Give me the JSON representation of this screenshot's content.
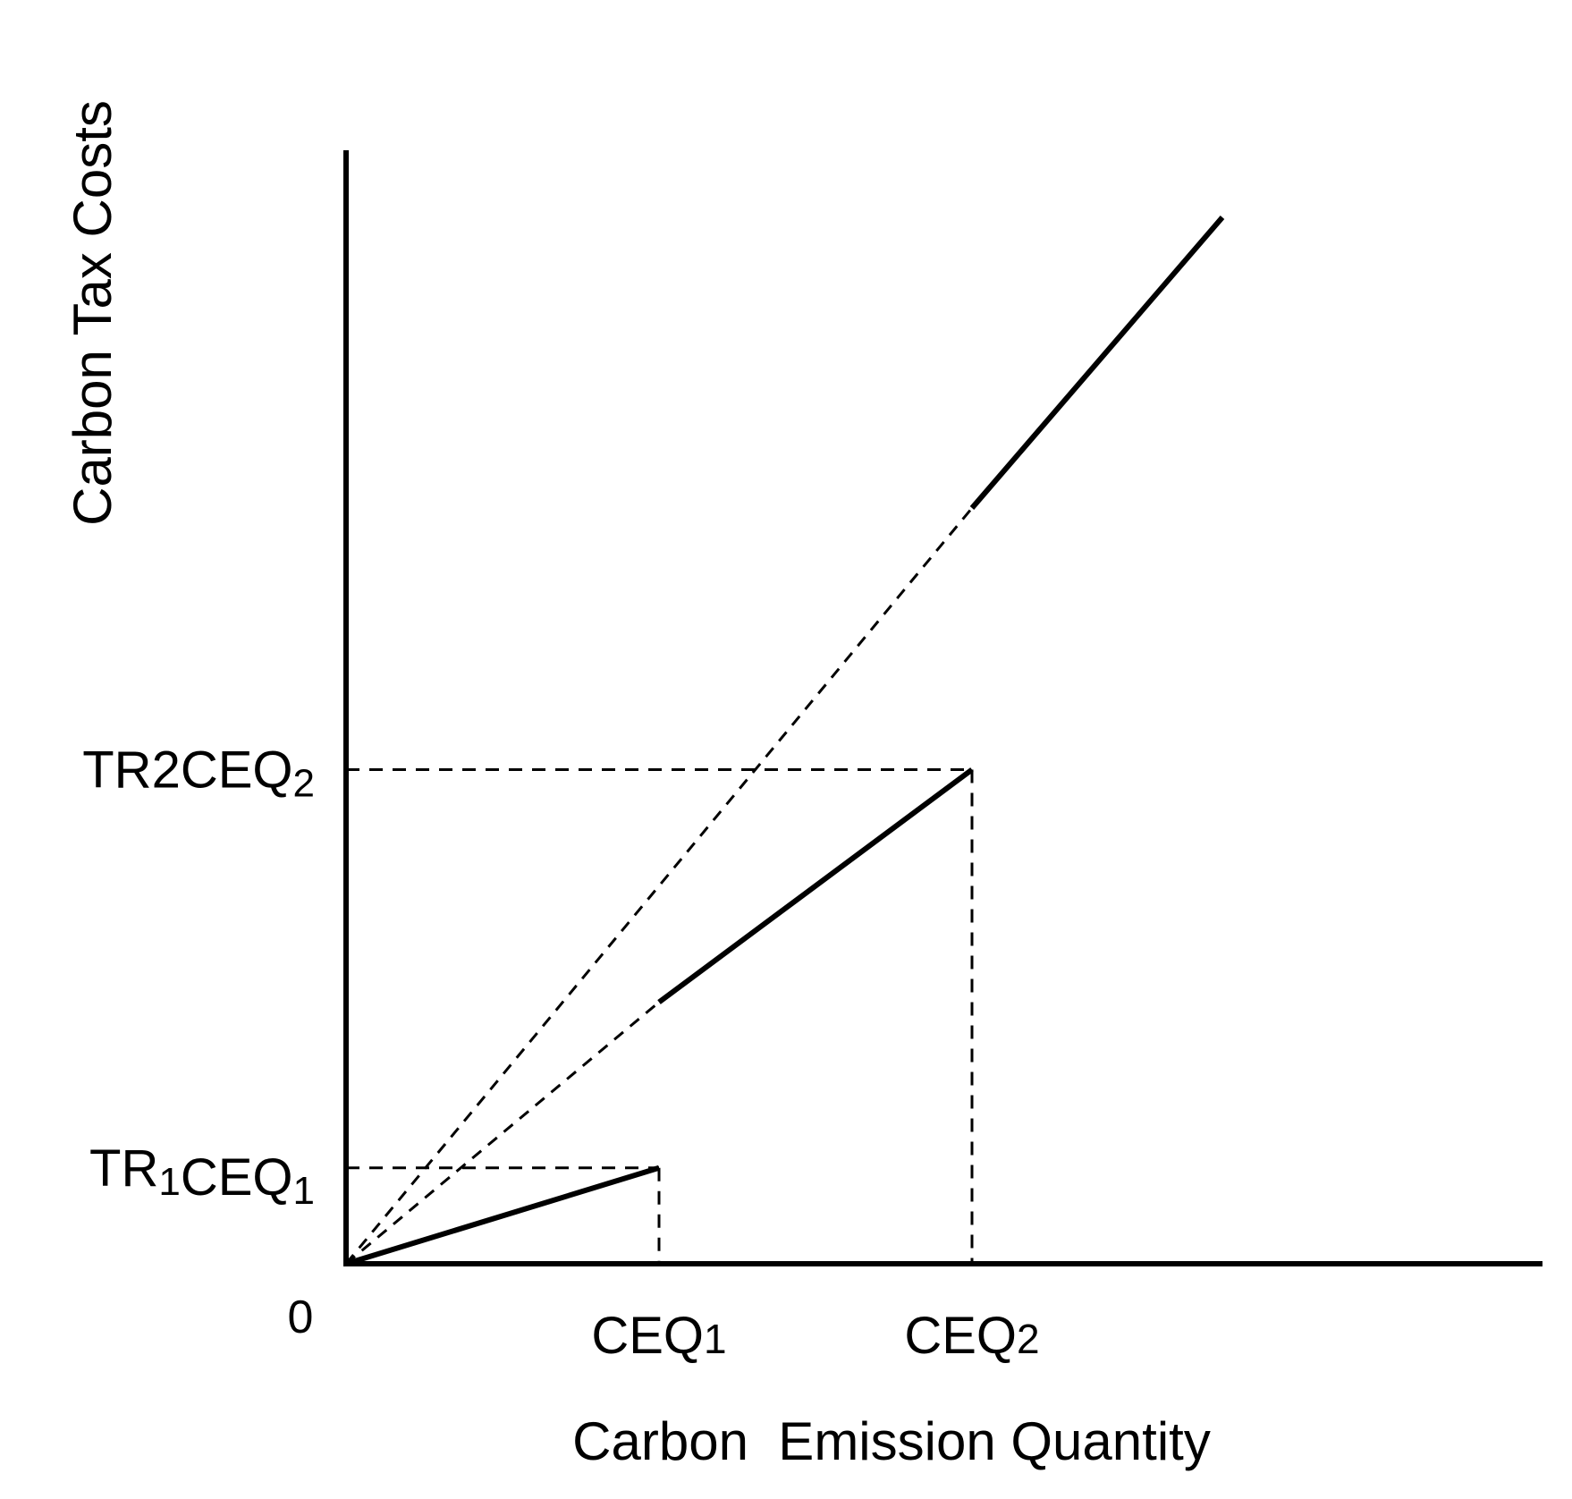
{
  "chart_data": {
    "type": "line",
    "title": "",
    "xlabel": "Carbon  Emission Quantity",
    "ylabel": "Carbon Tax Costs",
    "origin_label": "0",
    "xlim": [
      0,
      3.8
    ],
    "ylim": [
      0,
      3.6
    ],
    "grid": false,
    "legend": "none",
    "x_ticks": [
      {
        "x": 1,
        "main": "CEQ",
        "sub": "1",
        "sub_style": "normal"
      },
      {
        "x": 2,
        "main": "CEQ",
        "sub": "2",
        "sub_style": "normal"
      }
    ],
    "y_ticks": [
      {
        "y": 0.33,
        "parts": [
          [
            "TR",
            "normal"
          ],
          [
            "1",
            "sub"
          ],
          [
            "CEQ",
            "normal"
          ],
          [
            "1",
            "sub"
          ]
        ]
      },
      {
        "y": 1.7,
        "parts": [
          [
            "TR",
            "normal"
          ],
          [
            "2",
            "normal"
          ],
          [
            "CEQ",
            "normal"
          ],
          [
            "2",
            "sub"
          ]
        ]
      }
    ],
    "series": [
      {
        "style": "solid",
        "points": [
          [
            0,
            0
          ],
          [
            1,
            0.33
          ]
        ]
      },
      {
        "style": "dashed",
        "points": [
          [
            0,
            0
          ],
          [
            1,
            0.9
          ]
        ]
      },
      {
        "style": "solid",
        "points": [
          [
            1,
            0.9
          ],
          [
            2,
            1.7
          ]
        ]
      },
      {
        "style": "dashed",
        "points": [
          [
            0,
            0
          ],
          [
            2,
            2.6
          ]
        ]
      },
      {
        "style": "solid",
        "points": [
          [
            2,
            2.6
          ],
          [
            2.8,
            3.6
          ]
        ]
      }
    ],
    "guides": [
      {
        "style": "dashed",
        "points": [
          [
            0,
            0.33
          ],
          [
            1,
            0.33
          ]
        ]
      },
      {
        "style": "dashed",
        "points": [
          [
            1,
            0.33
          ],
          [
            1,
            0
          ]
        ]
      },
      {
        "style": "dashed",
        "points": [
          [
            0,
            1.7
          ],
          [
            2,
            1.7
          ]
        ]
      },
      {
        "style": "dashed",
        "points": [
          [
            2,
            1.7
          ],
          [
            2,
            0
          ]
        ]
      }
    ],
    "colors": {
      "ink": "#000000",
      "background": "#ffffff"
    }
  }
}
